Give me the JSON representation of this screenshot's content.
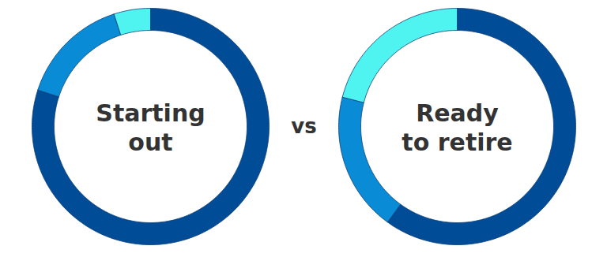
{
  "chart_data": [
    {
      "type": "donut",
      "title": "Starting\nout",
      "values": [
        80,
        15,
        5
      ],
      "colors": [
        "#004c97",
        "#0a8bd6",
        "#4ff3ef"
      ]
    },
    {
      "type": "donut",
      "title": "Ready\nto retire",
      "values": [
        60,
        19,
        21
      ],
      "colors": [
        "#004c97",
        "#0a8bd6",
        "#4ff3ef"
      ]
    }
  ],
  "annotation": "vs"
}
